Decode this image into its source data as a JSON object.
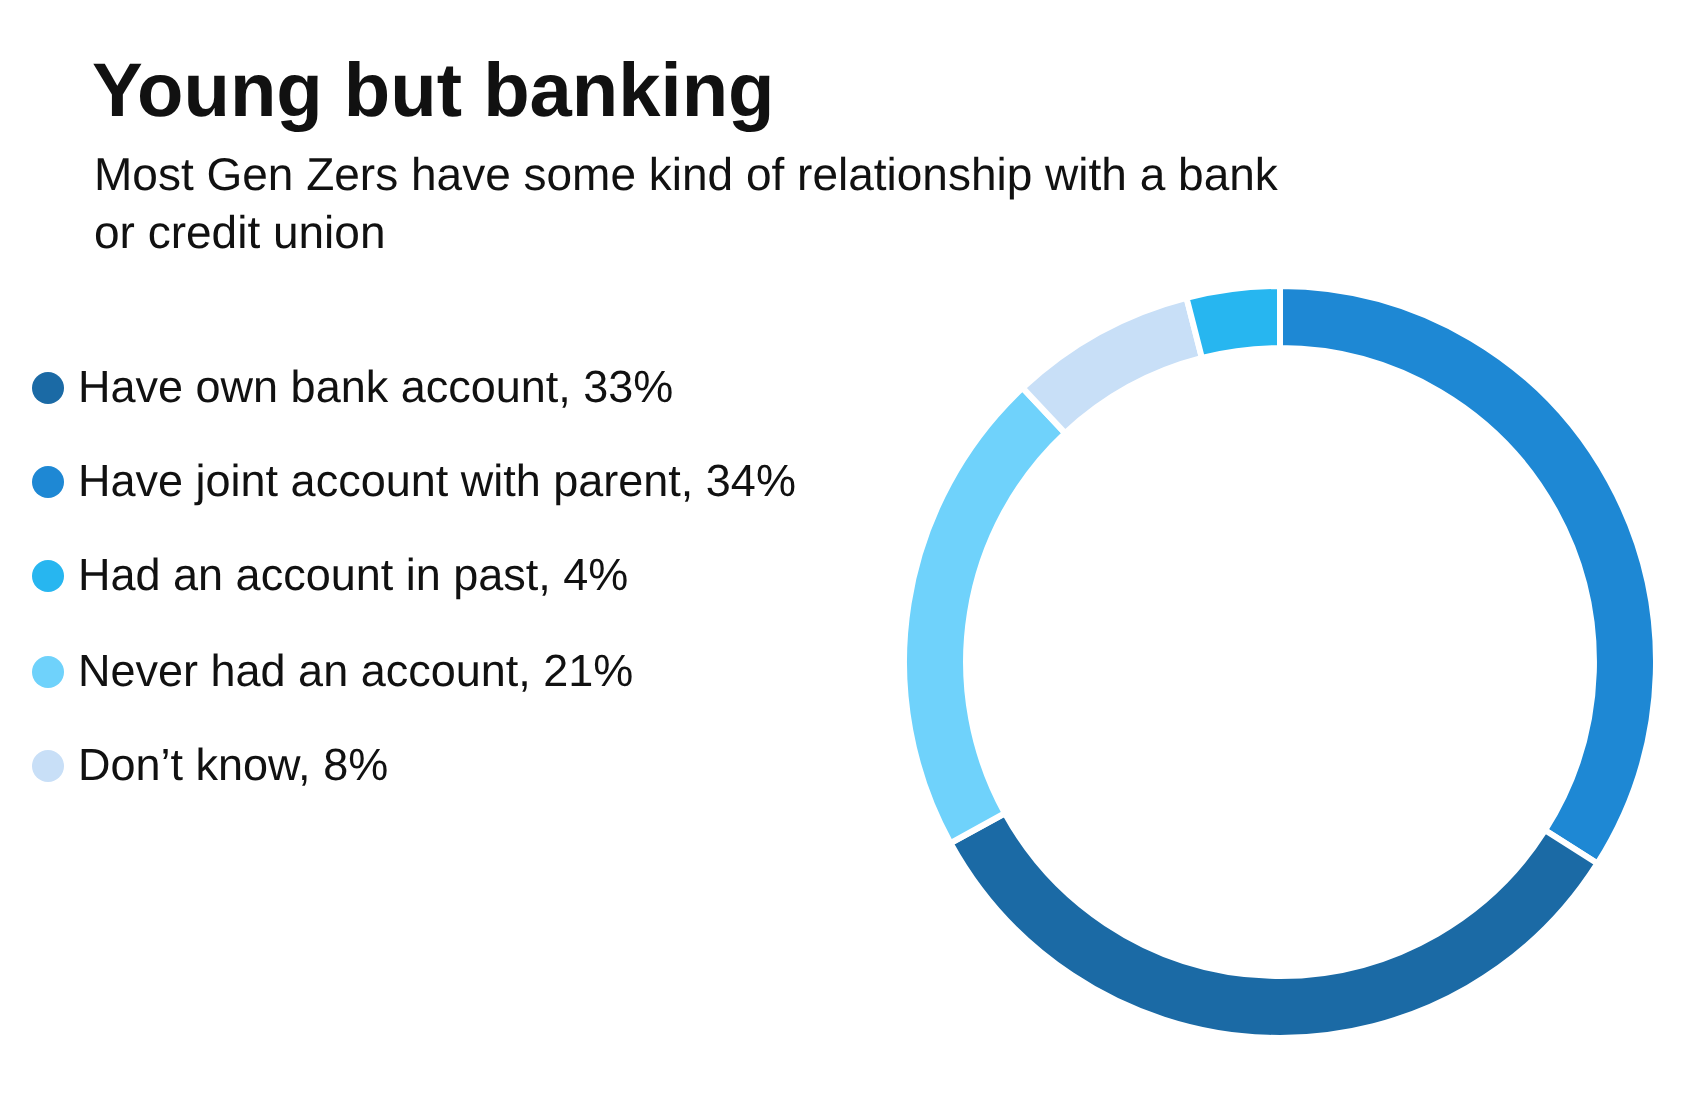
{
  "chart_data": {
    "type": "donut",
    "title": "Young but banking",
    "subtitle": "Most Gen Zers have some kind of relationship with a bank or credit union",
    "categories": [
      "Have own bank account, 33%",
      "Have joint account with parent, 34%",
      "Had an account in past, 4%",
      "Never had an account, 21%",
      "Don’t know, 8%"
    ],
    "values": [
      33,
      34,
      4,
      21,
      8
    ],
    "colors": [
      "#1b6aa5",
      "#1e88d4",
      "#27b6f0",
      "#6fd2fb",
      "#c8dff7"
    ],
    "legend": "left"
  }
}
